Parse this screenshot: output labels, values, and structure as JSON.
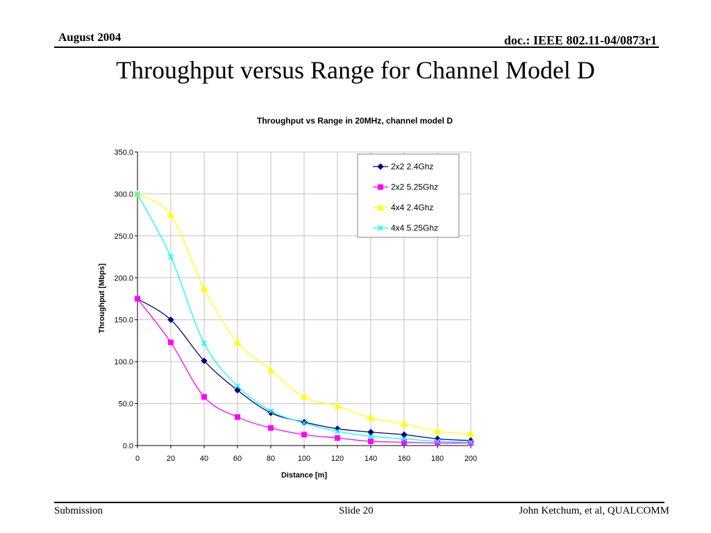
{
  "header": {
    "date": "August 2004",
    "doc": "doc.: IEEE 802.11-04/0873r1"
  },
  "slide_title": "Throughput versus Range for Channel Model D",
  "footer": {
    "left": "Submission",
    "center": "Slide 20",
    "right": "John Ketchum, et al, QUALCOMM"
  },
  "chart_data": {
    "type": "line",
    "title": "Throughput vs Range in 20MHz, channel model D",
    "xlabel": "Distance [m]",
    "ylabel": "Throughput [Mbps]",
    "xlim": [
      0,
      200
    ],
    "ylim": [
      0,
      350
    ],
    "x_ticks": [
      "0",
      "20",
      "40",
      "60",
      "80",
      "100",
      "120",
      "140",
      "160",
      "180",
      "200"
    ],
    "y_ticks": [
      "0.0",
      "50.0",
      "100.0",
      "150.0",
      "200.0",
      "250.0",
      "300.0",
      "350.0"
    ],
    "grid": true,
    "smoothed": true,
    "legend_position": "top-right",
    "x": [
      0,
      20,
      40,
      60,
      80,
      100,
      120,
      140,
      160,
      180,
      200
    ],
    "series": [
      {
        "name": "2x2 2.4Ghz",
        "color": "#000080",
        "marker": "diamond",
        "values": [
          175,
          150,
          101,
          66,
          39,
          28,
          20,
          16,
          13,
          8,
          6
        ]
      },
      {
        "name": "2x2 5.25Ghz",
        "color": "#ff00ff",
        "marker": "square",
        "values": [
          175,
          123,
          58,
          34,
          21,
          13,
          9,
          5,
          4,
          3,
          3
        ]
      },
      {
        "name": "4x4 2.4Ghz",
        "color": "#ffff00",
        "marker": "triangle",
        "values": [
          300,
          275,
          187,
          123,
          90,
          58,
          47,
          33,
          26,
          17,
          14
        ]
      },
      {
        "name": "4x4 5.25Ghz",
        "color": "#00ffff",
        "marker": "x",
        "values": [
          300,
          225,
          122,
          71,
          41,
          27,
          17,
          11,
          8,
          5,
          4
        ]
      }
    ]
  }
}
